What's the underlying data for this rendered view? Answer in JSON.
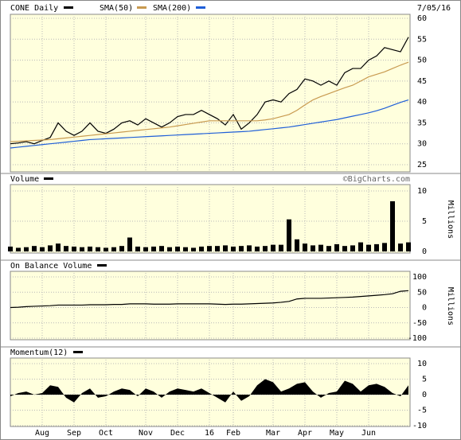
{
  "chart_data": [
    {
      "type": "line",
      "date": "7/05/16",
      "ylim": [
        25,
        60
      ],
      "yticks": [
        25,
        30,
        35,
        40,
        45,
        50,
        55,
        60
      ],
      "grid": true,
      "series": [
        {
          "name": "CONE Daily",
          "color": "#000000",
          "values": [
            30,
            30.2,
            30.5,
            30,
            30.8,
            31.5,
            35,
            33,
            32,
            33,
            35,
            33,
            32.5,
            33.5,
            35,
            35.5,
            34.5,
            36,
            35,
            34,
            35,
            36.5,
            37,
            37,
            38,
            37,
            36,
            34.5,
            37,
            33.5,
            35,
            37,
            40,
            40.5,
            40,
            42,
            43,
            45.5,
            45,
            44,
            45,
            44,
            47,
            48,
            48,
            50,
            51,
            53,
            52.5,
            52,
            55.5
          ]
        },
        {
          "name": "SMA(50)",
          "color": "#c89a50",
          "values": [
            30.5,
            30.6,
            30.7,
            30.8,
            30.9,
            31,
            31.2,
            31.4,
            31.6,
            31.8,
            32,
            32.2,
            32.4,
            32.6,
            32.8,
            33,
            33.2,
            33.4,
            33.6,
            33.8,
            34,
            34.3,
            34.6,
            34.9,
            35.2,
            35.5,
            35.5,
            35.5,
            35.5,
            35.5,
            35.5,
            35.5,
            35.7,
            36,
            36.5,
            37,
            38,
            39.3,
            40.5,
            41.3,
            42,
            42.7,
            43.4,
            44,
            45,
            46,
            46.6,
            47.2,
            48,
            48.8,
            49.5
          ]
        },
        {
          "name": "SMA(200)",
          "color": "#1f5fd8",
          "values": [
            29,
            29.2,
            29.4,
            29.6,
            29.8,
            30,
            30.2,
            30.4,
            30.6,
            30.8,
            31,
            31.1,
            31.2,
            31.3,
            31.4,
            31.5,
            31.6,
            31.7,
            31.8,
            31.9,
            32,
            32.1,
            32.2,
            32.3,
            32.4,
            32.5,
            32.6,
            32.7,
            32.8,
            32.9,
            33,
            33.2,
            33.4,
            33.6,
            33.8,
            34,
            34.3,
            34.6,
            34.9,
            35.2,
            35.5,
            35.8,
            36.2,
            36.6,
            37,
            37.4,
            37.9,
            38.5,
            39.2,
            39.9,
            40.5
          ]
        }
      ]
    },
    {
      "type": "bar",
      "title": "Volume",
      "annotation": "©BigCharts.com",
      "ylabel": "Millions",
      "color": "#000000",
      "ylim": [
        0,
        10
      ],
      "yticks": [
        0,
        5,
        10
      ],
      "grid": true,
      "values": [
        0.8,
        0.6,
        0.7,
        0.9,
        0.7,
        1.0,
        1.3,
        0.9,
        0.8,
        0.7,
        0.8,
        0.7,
        0.6,
        0.7,
        0.9,
        2.3,
        0.8,
        0.7,
        0.8,
        0.9,
        0.7,
        0.8,
        0.7,
        0.6,
        0.8,
        0.9,
        0.9,
        1.0,
        0.8,
        0.9,
        1.0,
        0.8,
        0.9,
        1.1,
        1.1,
        5.3,
        2.0,
        1.3,
        1.0,
        1.1,
        0.9,
        1.2,
        0.9,
        1.0,
        1.5,
        1.1,
        1.2,
        1.4,
        8.3,
        1.3,
        1.5
      ]
    },
    {
      "type": "line",
      "title": "On Balance Volume",
      "ylabel": "Millions",
      "ylim": [
        -100,
        100
      ],
      "yticks": [
        -100,
        -50,
        0,
        50,
        100
      ],
      "grid": true,
      "series": [
        {
          "color": "#000000",
          "values": [
            0,
            1,
            3,
            4,
            5,
            6,
            8,
            8,
            8,
            8,
            9,
            9,
            9,
            10,
            10,
            12,
            12,
            12,
            11,
            11,
            11,
            12,
            12,
            12,
            12,
            12,
            11,
            10,
            11,
            11,
            12,
            13,
            14,
            15,
            17,
            20,
            28,
            30,
            30,
            30,
            31,
            32,
            33,
            34,
            36,
            38,
            40,
            42,
            45,
            53,
            55
          ]
        }
      ]
    },
    {
      "type": "area",
      "title": "Momentum(12)",
      "color": "#000000",
      "ylim": [
        -10,
        10
      ],
      "yticks": [
        -10,
        -5,
        0,
        5,
        10
      ],
      "grid": true,
      "categories": [
        null,
        null,
        null,
        null,
        "Aug",
        null,
        null,
        null,
        "Sep",
        null,
        null,
        null,
        "Oct",
        null,
        null,
        null,
        null,
        "Nov",
        null,
        null,
        null,
        "Dec",
        null,
        null,
        null,
        "16",
        null,
        null,
        "Feb",
        null,
        null,
        null,
        null,
        "Mar",
        null,
        null,
        null,
        "Apr",
        null,
        null,
        null,
        "May",
        null,
        null,
        null,
        "Jun",
        null,
        null,
        null,
        null,
        null
      ],
      "values": [
        -0.5,
        0.5,
        1,
        0,
        0.5,
        3,
        2.5,
        -1,
        -2.5,
        0.5,
        2,
        -1,
        -0.5,
        1,
        2,
        1.5,
        -0.5,
        2,
        1,
        -1,
        1,
        2,
        1.5,
        1,
        2,
        0.5,
        -1,
        -2.5,
        1,
        -2,
        -0.5,
        3,
        5,
        4,
        1,
        2,
        3.5,
        4,
        1,
        -1,
        0.5,
        1,
        4.5,
        3.5,
        1,
        3,
        3.5,
        2.5,
        0.5,
        -0.5,
        3
      ]
    }
  ]
}
